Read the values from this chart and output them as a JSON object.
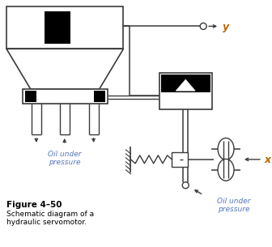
{
  "title": "Figure 4–50",
  "subtitle1": "Schematic diagram of a",
  "subtitle2": "hydraulic servomotor.",
  "oil_label_left": "Oil under\npressure",
  "oil_label_right": "Oil under\npressure",
  "label_y": "y",
  "label_x": "x",
  "fig_bg": "#ffffff",
  "lc": "#3a3a3a",
  "oil_text_color": "#5577bb",
  "label_color": "#bb6600"
}
